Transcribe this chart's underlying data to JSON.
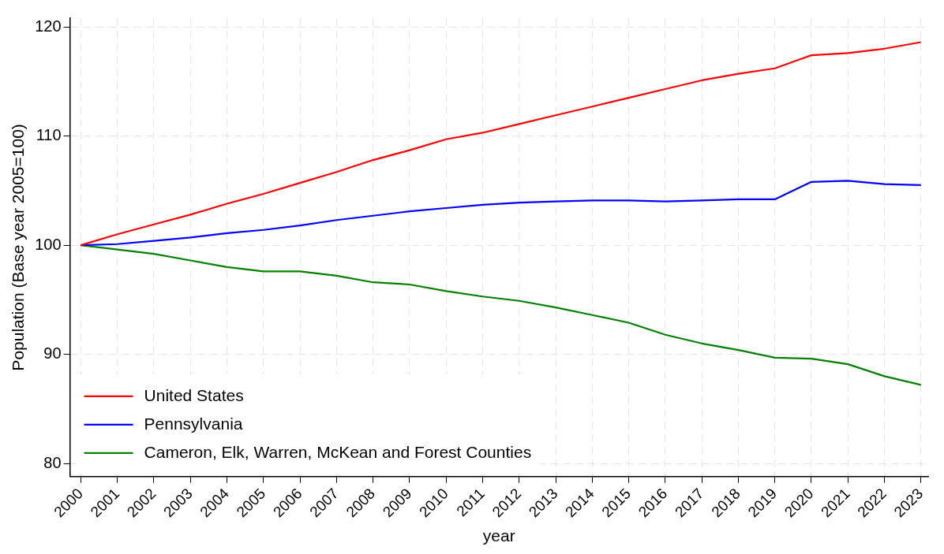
{
  "chart_data": {
    "type": "line",
    "xlabel": "year",
    "ylabel": "Population (Base year 2005=100)",
    "x": [
      2000,
      2001,
      2002,
      2003,
      2004,
      2005,
      2006,
      2007,
      2008,
      2009,
      2010,
      2011,
      2012,
      2013,
      2014,
      2015,
      2016,
      2017,
      2018,
      2019,
      2020,
      2021,
      2022,
      2023
    ],
    "series": [
      {
        "name": "United States",
        "color": "#ff0000",
        "values": [
          100,
          101.0,
          101.9,
          102.8,
          103.8,
          104.7,
          105.7,
          106.7,
          107.8,
          108.7,
          109.7,
          110.3,
          111.1,
          111.9,
          112.7,
          113.5,
          114.3,
          115.1,
          115.7,
          116.2,
          117.4,
          117.6,
          118.0,
          118.6
        ]
      },
      {
        "name": "Pennsylvania",
        "color": "#0000ff",
        "values": [
          100,
          100.1,
          100.4,
          100.7,
          101.1,
          101.4,
          101.8,
          102.3,
          102.7,
          103.1,
          103.4,
          103.7,
          103.9,
          104.0,
          104.1,
          104.1,
          104.0,
          104.1,
          104.2,
          104.2,
          105.8,
          105.9,
          105.6,
          105.5
        ]
      },
      {
        "name": "Cameron, Elk, Warren, McKean and Forest Counties",
        "color": "#008000",
        "values": [
          100,
          99.6,
          99.2,
          98.6,
          98.0,
          97.6,
          97.6,
          97.2,
          96.6,
          96.4,
          95.8,
          95.3,
          94.9,
          94.3,
          93.6,
          92.9,
          91.8,
          91.0,
          90.4,
          89.7,
          89.6,
          89.1,
          88.0,
          87.2
        ]
      }
    ],
    "xlim": [
      1999.7,
      2023.2
    ],
    "xticks": [
      2000,
      2001,
      2002,
      2003,
      2004,
      2005,
      2006,
      2007,
      2008,
      2009,
      2010,
      2011,
      2012,
      2013,
      2014,
      2015,
      2016,
      2017,
      2018,
      2019,
      2020,
      2021,
      2022,
      2023
    ],
    "ylim": [
      78.8,
      120.8
    ],
    "yticks": [
      80,
      90,
      100,
      110,
      120
    ],
    "grid": true,
    "legend": "bottom left",
    "marker": "none",
    "line_style": "solid"
  }
}
